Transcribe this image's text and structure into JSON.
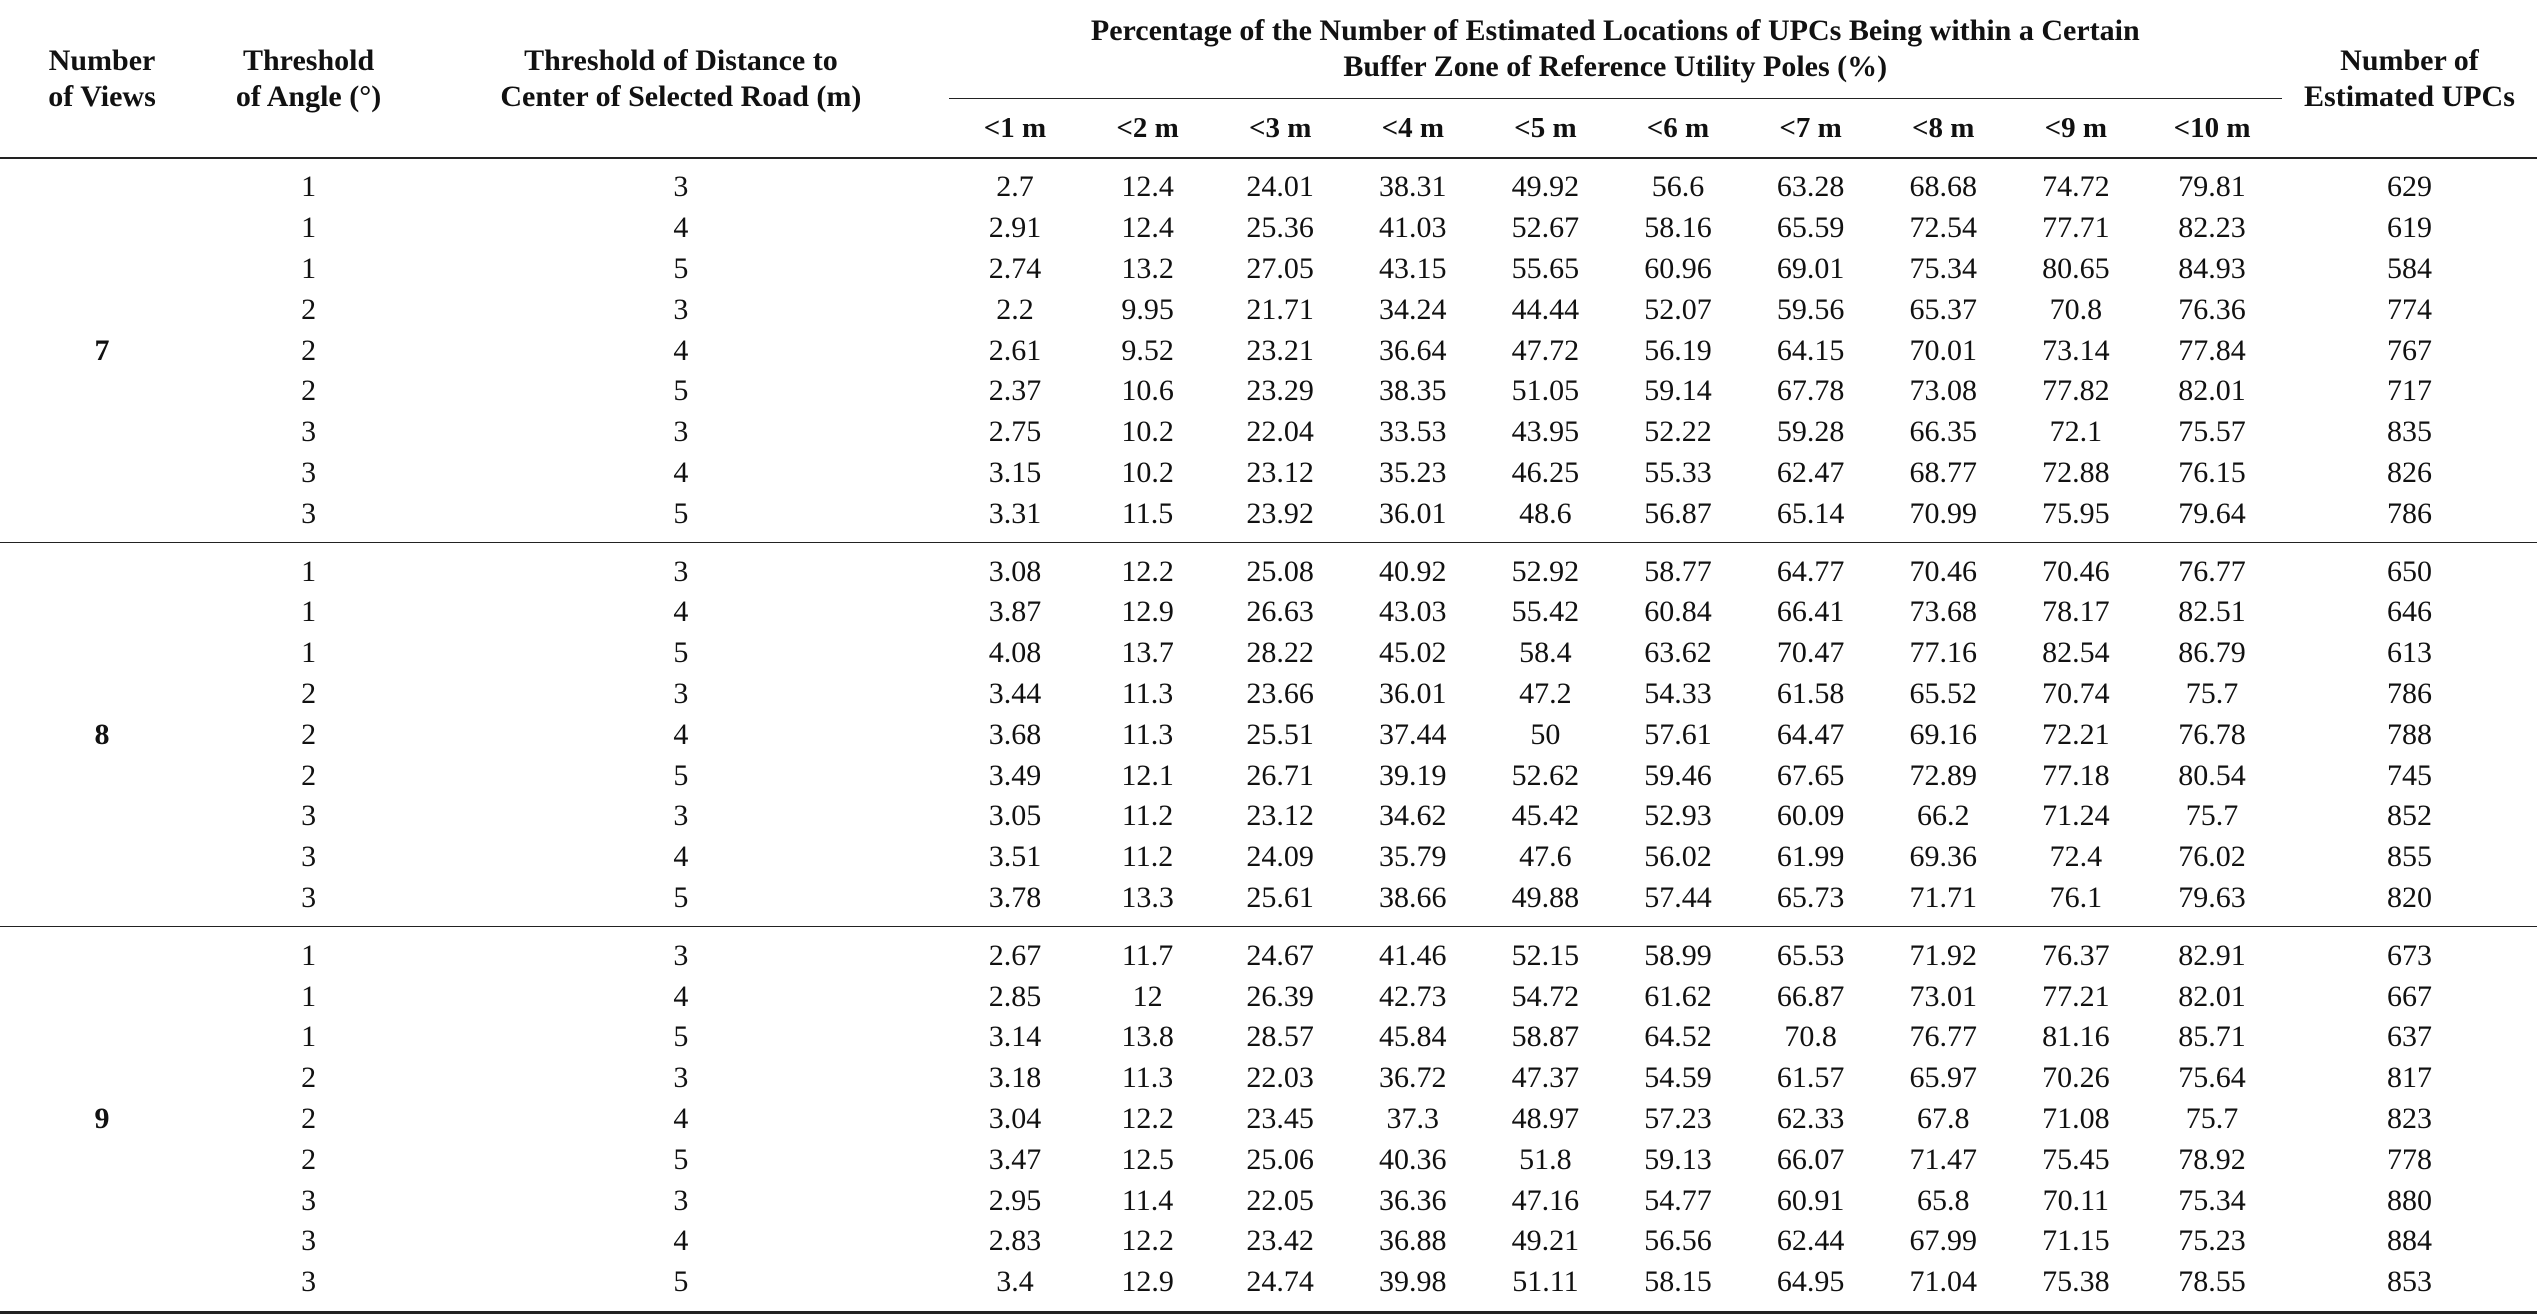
{
  "table": {
    "headers": {
      "views": "Number of Views",
      "angle": "Threshold of Angle (°)",
      "distance": "Threshold of Distance to Center of Selected Road (m)",
      "buffer_title": "Percentage of the Number of Estimated Locations of UPCs Being within a Certain Buffer Zone of Reference Utility Poles (%)",
      "buffers": [
        "<1 m",
        "<2 m",
        "<3 m",
        "<4 m",
        "<5 m",
        "<6 m",
        "<7 m",
        "<8 m",
        "<9 m",
        "<10 m"
      ],
      "count": "Number of Estimated UPCs"
    },
    "groups": [
      {
        "views": "7",
        "rows": [
          {
            "angle": "1",
            "distance": "3",
            "values": [
              "2.7",
              "12.4",
              "24.01",
              "38.31",
              "49.92",
              "56.6",
              "63.28",
              "68.68",
              "74.72",
              "79.81"
            ],
            "count": "629"
          },
          {
            "angle": "1",
            "distance": "4",
            "values": [
              "2.91",
              "12.4",
              "25.36",
              "41.03",
              "52.67",
              "58.16",
              "65.59",
              "72.54",
              "77.71",
              "82.23"
            ],
            "count": "619"
          },
          {
            "angle": "1",
            "distance": "5",
            "values": [
              "2.74",
              "13.2",
              "27.05",
              "43.15",
              "55.65",
              "60.96",
              "69.01",
              "75.34",
              "80.65",
              "84.93"
            ],
            "count": "584"
          },
          {
            "angle": "2",
            "distance": "3",
            "values": [
              "2.2",
              "9.95",
              "21.71",
              "34.24",
              "44.44",
              "52.07",
              "59.56",
              "65.37",
              "70.8",
              "76.36"
            ],
            "count": "774"
          },
          {
            "angle": "2",
            "distance": "4",
            "values": [
              "2.61",
              "9.52",
              "23.21",
              "36.64",
              "47.72",
              "56.19",
              "64.15",
              "70.01",
              "73.14",
              "77.84"
            ],
            "count": "767"
          },
          {
            "angle": "2",
            "distance": "5",
            "values": [
              "2.37",
              "10.6",
              "23.29",
              "38.35",
              "51.05",
              "59.14",
              "67.78",
              "73.08",
              "77.82",
              "82.01"
            ],
            "count": "717"
          },
          {
            "angle": "3",
            "distance": "3",
            "values": [
              "2.75",
              "10.2",
              "22.04",
              "33.53",
              "43.95",
              "52.22",
              "59.28",
              "66.35",
              "72.1",
              "75.57"
            ],
            "count": "835"
          },
          {
            "angle": "3",
            "distance": "4",
            "values": [
              "3.15",
              "10.2",
              "23.12",
              "35.23",
              "46.25",
              "55.33",
              "62.47",
              "68.77",
              "72.88",
              "76.15"
            ],
            "count": "826"
          },
          {
            "angle": "3",
            "distance": "5",
            "values": [
              "3.31",
              "11.5",
              "23.92",
              "36.01",
              "48.6",
              "56.87",
              "65.14",
              "70.99",
              "75.95",
              "79.64"
            ],
            "count": "786"
          }
        ]
      },
      {
        "views": "8",
        "rows": [
          {
            "angle": "1",
            "distance": "3",
            "values": [
              "3.08",
              "12.2",
              "25.08",
              "40.92",
              "52.92",
              "58.77",
              "64.77",
              "70.46",
              "70.46",
              "76.77"
            ],
            "count": "650"
          },
          {
            "angle": "1",
            "distance": "4",
            "values": [
              "3.87",
              "12.9",
              "26.63",
              "43.03",
              "55.42",
              "60.84",
              "66.41",
              "73.68",
              "78.17",
              "82.51"
            ],
            "count": "646"
          },
          {
            "angle": "1",
            "distance": "5",
            "values": [
              "4.08",
              "13.7",
              "28.22",
              "45.02",
              "58.4",
              "63.62",
              "70.47",
              "77.16",
              "82.54",
              "86.79"
            ],
            "count": "613"
          },
          {
            "angle": "2",
            "distance": "3",
            "values": [
              "3.44",
              "11.3",
              "23.66",
              "36.01",
              "47.2",
              "54.33",
              "61.58",
              "65.52",
              "70.74",
              "75.7"
            ],
            "count": "786"
          },
          {
            "angle": "2",
            "distance": "4",
            "values": [
              "3.68",
              "11.3",
              "25.51",
              "37.44",
              "50",
              "57.61",
              "64.47",
              "69.16",
              "72.21",
              "76.78"
            ],
            "count": "788"
          },
          {
            "angle": "2",
            "distance": "5",
            "values": [
              "3.49",
              "12.1",
              "26.71",
              "39.19",
              "52.62",
              "59.46",
              "67.65",
              "72.89",
              "77.18",
              "80.54"
            ],
            "count": "745"
          },
          {
            "angle": "3",
            "distance": "3",
            "values": [
              "3.05",
              "11.2",
              "23.12",
              "34.62",
              "45.42",
              "52.93",
              "60.09",
              "66.2",
              "71.24",
              "75.7"
            ],
            "count": "852"
          },
          {
            "angle": "3",
            "distance": "4",
            "values": [
              "3.51",
              "11.2",
              "24.09",
              "35.79",
              "47.6",
              "56.02",
              "61.99",
              "69.36",
              "72.4",
              "76.02"
            ],
            "count": "855"
          },
          {
            "angle": "3",
            "distance": "5",
            "values": [
              "3.78",
              "13.3",
              "25.61",
              "38.66",
              "49.88",
              "57.44",
              "65.73",
              "71.71",
              "76.1",
              "79.63"
            ],
            "count": "820"
          }
        ]
      },
      {
        "views": "9",
        "rows": [
          {
            "angle": "1",
            "distance": "3",
            "values": [
              "2.67",
              "11.7",
              "24.67",
              "41.46",
              "52.15",
              "58.99",
              "65.53",
              "71.92",
              "76.37",
              "82.91"
            ],
            "count": "673"
          },
          {
            "angle": "1",
            "distance": "4",
            "values": [
              "2.85",
              "12",
              "26.39",
              "42.73",
              "54.72",
              "61.62",
              "66.87",
              "73.01",
              "77.21",
              "82.01"
            ],
            "count": "667"
          },
          {
            "angle": "1",
            "distance": "5",
            "values": [
              "3.14",
              "13.8",
              "28.57",
              "45.84",
              "58.87",
              "64.52",
              "70.8",
              "76.77",
              "81.16",
              "85.71"
            ],
            "count": "637"
          },
          {
            "angle": "2",
            "distance": "3",
            "values": [
              "3.18",
              "11.3",
              "22.03",
              "36.72",
              "47.37",
              "54.59",
              "61.57",
              "65.97",
              "70.26",
              "75.64"
            ],
            "count": "817"
          },
          {
            "angle": "2",
            "distance": "4",
            "values": [
              "3.04",
              "12.2",
              "23.45",
              "37.3",
              "48.97",
              "57.23",
              "62.33",
              "67.8",
              "71.08",
              "75.7"
            ],
            "count": "823"
          },
          {
            "angle": "2",
            "distance": "5",
            "values": [
              "3.47",
              "12.5",
              "25.06",
              "40.36",
              "51.8",
              "59.13",
              "66.07",
              "71.47",
              "75.45",
              "78.92"
            ],
            "count": "778"
          },
          {
            "angle": "3",
            "distance": "3",
            "values": [
              "2.95",
              "11.4",
              "22.05",
              "36.36",
              "47.16",
              "54.77",
              "60.91",
              "65.8",
              "70.11",
              "75.34"
            ],
            "count": "880"
          },
          {
            "angle": "3",
            "distance": "4",
            "values": [
              "2.83",
              "12.2",
              "23.42",
              "36.88",
              "49.21",
              "56.56",
              "62.44",
              "67.99",
              "71.15",
              "75.23"
            ],
            "count": "884"
          },
          {
            "angle": "3",
            "distance": "5",
            "values": [
              "3.4",
              "12.9",
              "24.74",
              "39.98",
              "51.11",
              "58.15",
              "64.95",
              "71.04",
              "75.38",
              "78.55"
            ],
            "count": "853"
          }
        ]
      }
    ]
  }
}
